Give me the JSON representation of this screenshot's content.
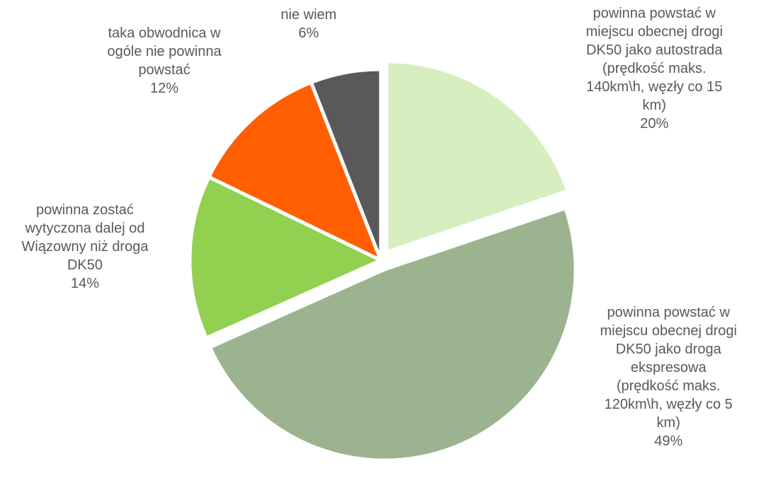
{
  "chart_data": {
    "type": "pie",
    "title": "",
    "slices": [
      {
        "label": "powinna powstać w miejscu obecnej drogi DK50 jako autostrada (prędkość maks. 140km\\h, węzły co 15 km)",
        "label_lines": [
          "powinna powstać w",
          "miejscu obecnej drogi",
          "DK50 jako autostrada",
          "(prędkość maks.",
          "140km\\h, węzły co 15",
          "km)"
        ],
        "value": 20,
        "value_label": "20%",
        "color": "#d6eec0",
        "exploded": true
      },
      {
        "label": "powinna powstać w miejscu obecnej drogi DK50 jako droga ekspresowa (prędkość maks. 120km\\h, węzły co 5 km)",
        "label_lines": [
          "powinna powstać w",
          "miejscu obecnej drogi",
          "DK50 jako droga",
          "ekspresowa",
          "(prędkość maks.",
          "120km\\h, węzły co 5",
          "km)"
        ],
        "value": 49,
        "value_label": "49%",
        "color": "#9bb48f",
        "exploded": true
      },
      {
        "label": "powinna zostać wytyczona dalej od Wiązowny niż droga DK50",
        "label_lines": [
          "powinna zostać",
          "wytyczona dalej od",
          "Wiązowny niż droga",
          "DK50"
        ],
        "value": 14,
        "value_label": "14%",
        "color": "#92d050",
        "exploded": false
      },
      {
        "label": "taka obwodnica w ogóle nie powinna powstać",
        "label_lines": [
          "taka obwodnica w",
          "ogóle nie powinna",
          "powstać"
        ],
        "value": 12,
        "value_label": "12%",
        "color": "#ff5f00",
        "exploded": false
      },
      {
        "label": "nie wiem",
        "label_lines": [
          "nie wiem"
        ],
        "value": 6,
        "value_label": "6%",
        "color": "#595959",
        "exploded": false
      }
    ],
    "legend": "none",
    "data_labels": "outside"
  }
}
